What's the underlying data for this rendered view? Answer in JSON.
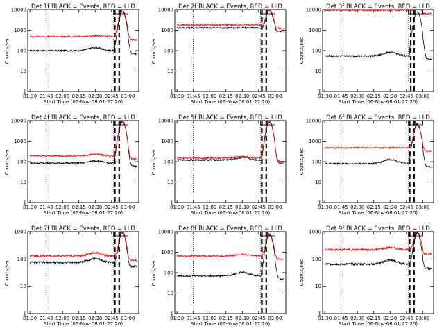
{
  "window": {
    "width": 640,
    "height": 480
  },
  "colors": {
    "events": "#000000",
    "lld": "#ff0000",
    "axes": "#000000",
    "background": "#ffffff"
  },
  "chart_data": [
    {
      "type": "line",
      "title": "Det 1f BLACK = Events, RED = LLD",
      "xlabel": "Start Time (06-Nov-08 01:27:20)",
      "ylabel": "Counts/sec",
      "yscale": "log",
      "ylim": [
        1,
        10000
      ],
      "x_ticks": [
        "01:30",
        "01:45",
        "02:00",
        "02:15",
        "02:30",
        "02:45",
        "03:00"
      ],
      "y_ticks": [
        "1",
        "10",
        "100",
        "1000",
        "10000"
      ],
      "series": [
        {
          "name": "Events",
          "color": "#000000",
          "base": 100,
          "swell": 1.4,
          "peak": 8000
        },
        {
          "name": "LLD",
          "color": "#ff0000",
          "base": 480,
          "swell": 1.1,
          "peak": 9500
        }
      ],
      "markers": {
        "dotted": [
          "01:45",
          "02:47"
        ],
        "dashed": [
          "02:48",
          "02:52"
        ]
      }
    },
    {
      "type": "line",
      "title": "Det 2f BLACK = Events, RED = LLD",
      "xlabel": "Start Time (06-Nov-08 01:27:20)",
      "ylabel": "Counts/sec",
      "yscale": "log",
      "ylim": [
        1,
        10000
      ],
      "x_ticks": [
        "01:30",
        "01:45",
        "02:00",
        "02:15",
        "02:30",
        "02:45",
        "03:00"
      ],
      "y_ticks": [
        "1",
        "10",
        "100",
        "1000",
        "10000"
      ],
      "series": [
        {
          "name": "Events",
          "color": "#000000",
          "base": 1300,
          "swell": 1.0,
          "peak": 9000
        },
        {
          "name": "LLD",
          "color": "#ff0000",
          "base": 1800,
          "swell": 1.0,
          "peak": 9800
        }
      ],
      "markers": {
        "dotted": [
          "01:45",
          "02:47"
        ],
        "dashed": [
          "02:48",
          "02:52"
        ]
      }
    },
    {
      "type": "line",
      "title": "Det 3f BLACK = Events, RED = LLD",
      "xlabel": "Start Time (06-Nov-08 01:27:20)",
      "ylabel": "Counts/sec",
      "yscale": "log",
      "ylim": [
        1,
        10000
      ],
      "x_ticks": [
        "01:30",
        "01:45",
        "02:00",
        "02:15",
        "02:30",
        "02:45",
        "03:00"
      ],
      "y_ticks": [
        "1",
        "10",
        "100",
        "1000",
        "10000"
      ],
      "series": [
        {
          "name": "Events",
          "color": "#000000",
          "base": 55,
          "swell": 1.5,
          "peak": 8000
        },
        {
          "name": "LLD",
          "color": "#ff0000",
          "base": 9200,
          "swell": 1.0,
          "peak": 10000
        }
      ],
      "markers": {
        "dotted": [
          "01:45",
          "02:47"
        ],
        "dashed": [
          "02:49",
          "02:52"
        ]
      }
    },
    {
      "type": "line",
      "title": "Det 4f BLACK = Events, RED = LLD",
      "xlabel": "Start Time (06-Nov-08 01:27:20)",
      "ylabel": "Counts/sec",
      "yscale": "log",
      "ylim": [
        1,
        10000
      ],
      "x_ticks": [
        "01:30",
        "01:45",
        "02:00",
        "02:15",
        "02:30",
        "02:45",
        "03:00"
      ],
      "y_ticks": [
        "1",
        "10",
        "100",
        "1000",
        "10000"
      ],
      "series": [
        {
          "name": "Events",
          "color": "#000000",
          "base": 85,
          "swell": 1.3,
          "peak": 9000
        },
        {
          "name": "LLD",
          "color": "#ff0000",
          "base": 190,
          "swell": 1.2,
          "peak": 9500
        }
      ],
      "markers": {
        "dotted": [
          "01:45",
          "02:47"
        ],
        "dashed": [
          "02:48",
          "02:52"
        ]
      }
    },
    {
      "type": "line",
      "title": "Det 5f BLACK = Events, RED = LLD",
      "xlabel": "Start Time (06-Nov-08 01:27:20)",
      "ylabel": "Counts/sec",
      "yscale": "log",
      "ylim": [
        1,
        10000
      ],
      "x_ticks": [
        "01:30",
        "01:45",
        "02:00",
        "02:15",
        "02:30",
        "02:45",
        "03:00"
      ],
      "y_ticks": [
        "1",
        "10",
        "100",
        "1000",
        "10000"
      ],
      "series": [
        {
          "name": "Events",
          "color": "#000000",
          "base": 120,
          "swell": 1.3,
          "peak": 8500
        },
        {
          "name": "LLD",
          "color": "#ff0000",
          "base": 150,
          "swell": 1.2,
          "peak": 9500
        }
      ],
      "markers": {
        "dotted": [
          "01:45",
          "02:47"
        ],
        "dashed": [
          "02:48",
          "02:52"
        ]
      }
    },
    {
      "type": "line",
      "title": "Det 6f BLACK = Events, RED = LLD",
      "xlabel": "Start Time (06-Nov-08 01:27:20)",
      "ylabel": "Counts/sec",
      "yscale": "log",
      "ylim": [
        1,
        10000
      ],
      "x_ticks": [
        "01:30",
        "01:45",
        "02:00",
        "02:15",
        "02:30",
        "02:45",
        "03:00"
      ],
      "y_ticks": [
        "1",
        "10",
        "100",
        "1000",
        "10000"
      ],
      "series": [
        {
          "name": "Events",
          "color": "#000000",
          "base": 80,
          "swell": 1.6,
          "peak": 7000
        },
        {
          "name": "LLD",
          "color": "#ff0000",
          "base": 470,
          "swell": 1.0,
          "peak": 6000
        }
      ],
      "markers": {
        "dotted": [
          "01:45",
          "02:47"
        ],
        "dashed": [
          "02:48",
          "02:52"
        ]
      }
    },
    {
      "type": "line",
      "title": "Det 7f BLACK = Events, RED = LLD",
      "xlabel": "Start Time (06-Nov-08 01:27:20)",
      "ylabel": "Counts/sec",
      "yscale": "log",
      "ylim": [
        1,
        1000
      ],
      "x_ticks": [
        "01:30",
        "01:45",
        "02:00",
        "02:15",
        "02:30",
        "02:45",
        "03:00"
      ],
      "y_ticks": [
        "1",
        "10",
        "100",
        "1000"
      ],
      "series": [
        {
          "name": "Events",
          "color": "#000000",
          "base": 75,
          "swell": 1.4,
          "peak": 900
        },
        {
          "name": "LLD",
          "color": "#ff0000",
          "base": 130,
          "swell": 1.3,
          "peak": 1000
        }
      ],
      "markers": {
        "dotted": [
          "01:45",
          "02:47"
        ],
        "dashed": [
          "02:48",
          "02:52"
        ]
      }
    },
    {
      "type": "line",
      "title": "Det 8f BLACK = Events, RED = LLD",
      "xlabel": "Start Time (06-Nov-08 01:27:20)",
      "ylabel": "Counts/sec",
      "yscale": "log",
      "ylim": [
        1,
        10000
      ],
      "x_ticks": [
        "01:30",
        "01:45",
        "02:00",
        "02:15",
        "02:30",
        "02:45",
        "03:00"
      ],
      "y_ticks": [
        "1",
        "10",
        "100",
        "1000",
        "10000"
      ],
      "series": [
        {
          "name": "Events",
          "color": "#000000",
          "base": 70,
          "swell": 1.5,
          "peak": 7000
        },
        {
          "name": "LLD",
          "color": "#ff0000",
          "base": 650,
          "swell": 1.2,
          "peak": 8000
        }
      ],
      "markers": {
        "dotted": [
          "01:45",
          "02:47"
        ],
        "dashed": [
          "02:48",
          "02:52"
        ]
      }
    },
    {
      "type": "line",
      "title": "Det 9f BLACK = Events, RED = LLD",
      "xlabel": "Start Time (06-Nov-08 01:27:20)",
      "ylabel": "Counts/sec",
      "yscale": "log",
      "ylim": [
        1,
        1000
      ],
      "x_ticks": [
        "01:30",
        "01:45",
        "02:00",
        "02:15",
        "02:30",
        "02:45",
        "03:00"
      ],
      "y_ticks": [
        "1",
        "10",
        "100",
        "1000"
      ],
      "series": [
        {
          "name": "Events",
          "color": "#000000",
          "base": 65,
          "swell": 1.4,
          "peak": 900
        },
        {
          "name": "LLD",
          "color": "#ff0000",
          "base": 220,
          "swell": 1.2,
          "peak": 1000
        }
      ],
      "markers": {
        "dotted": [
          "01:45",
          "02:47"
        ],
        "dashed": [
          "02:48",
          "02:52"
        ]
      }
    }
  ]
}
